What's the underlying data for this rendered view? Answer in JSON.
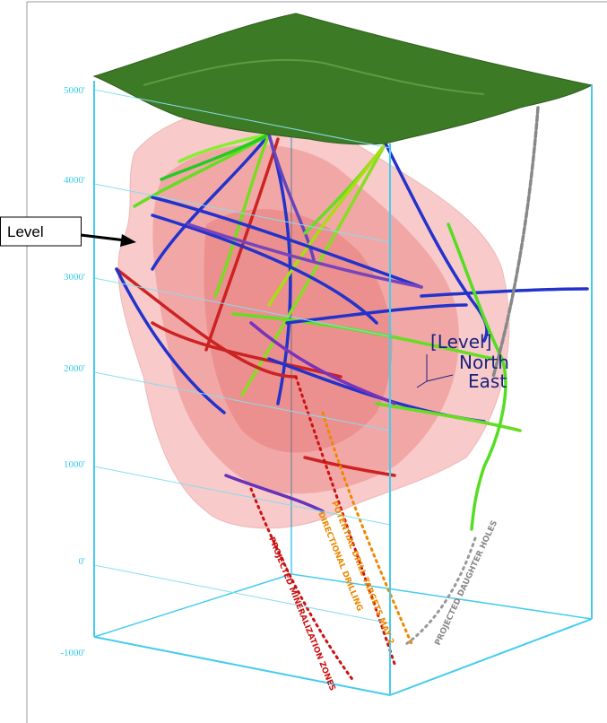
{
  "callout": {
    "label": "Level"
  },
  "elevation_labels": [
    "5000'",
    "4000'",
    "3000'",
    "2000'",
    "1000'",
    "0'",
    "-1000'"
  ],
  "orientation": {
    "level": "[Level]",
    "north": "North",
    "east": "East"
  },
  "annotations": {
    "mineralization": "PROJECTED MINERALIZATION ZONES",
    "targets": "POTENTIAL DRILL TARGETS MAY 2",
    "directional": "DIRECTIONAL DRILLING",
    "daughter": "PROJECTED DAUGHTER HOLES"
  }
}
